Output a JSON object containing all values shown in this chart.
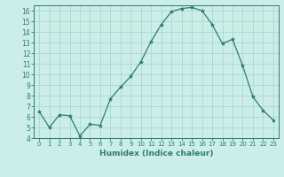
{
  "x": [
    0,
    1,
    2,
    3,
    4,
    5,
    6,
    7,
    8,
    9,
    10,
    11,
    12,
    13,
    14,
    15,
    16,
    17,
    18,
    19,
    20,
    21,
    22,
    23
  ],
  "y": [
    6.5,
    5.0,
    6.2,
    6.1,
    4.2,
    5.3,
    5.2,
    7.7,
    8.8,
    9.8,
    11.2,
    13.1,
    14.7,
    15.9,
    16.2,
    16.3,
    16.0,
    14.7,
    12.9,
    13.3,
    10.8,
    7.9,
    6.6,
    5.7
  ],
  "line_color": "#2e7d6e",
  "marker": "*",
  "marker_size": 3,
  "bg_color": "#cceee8",
  "grid_color": "#aad8d0",
  "xlabel": "Humidex (Indice chaleur)",
  "xlim": [
    -0.5,
    23.5
  ],
  "ylim": [
    4,
    16.5
  ],
  "yticks": [
    4,
    5,
    6,
    7,
    8,
    9,
    10,
    11,
    12,
    13,
    14,
    15,
    16
  ],
  "xticks": [
    0,
    1,
    2,
    3,
    4,
    5,
    6,
    7,
    8,
    9,
    10,
    11,
    12,
    13,
    14,
    15,
    16,
    17,
    18,
    19,
    20,
    21,
    22,
    23
  ]
}
